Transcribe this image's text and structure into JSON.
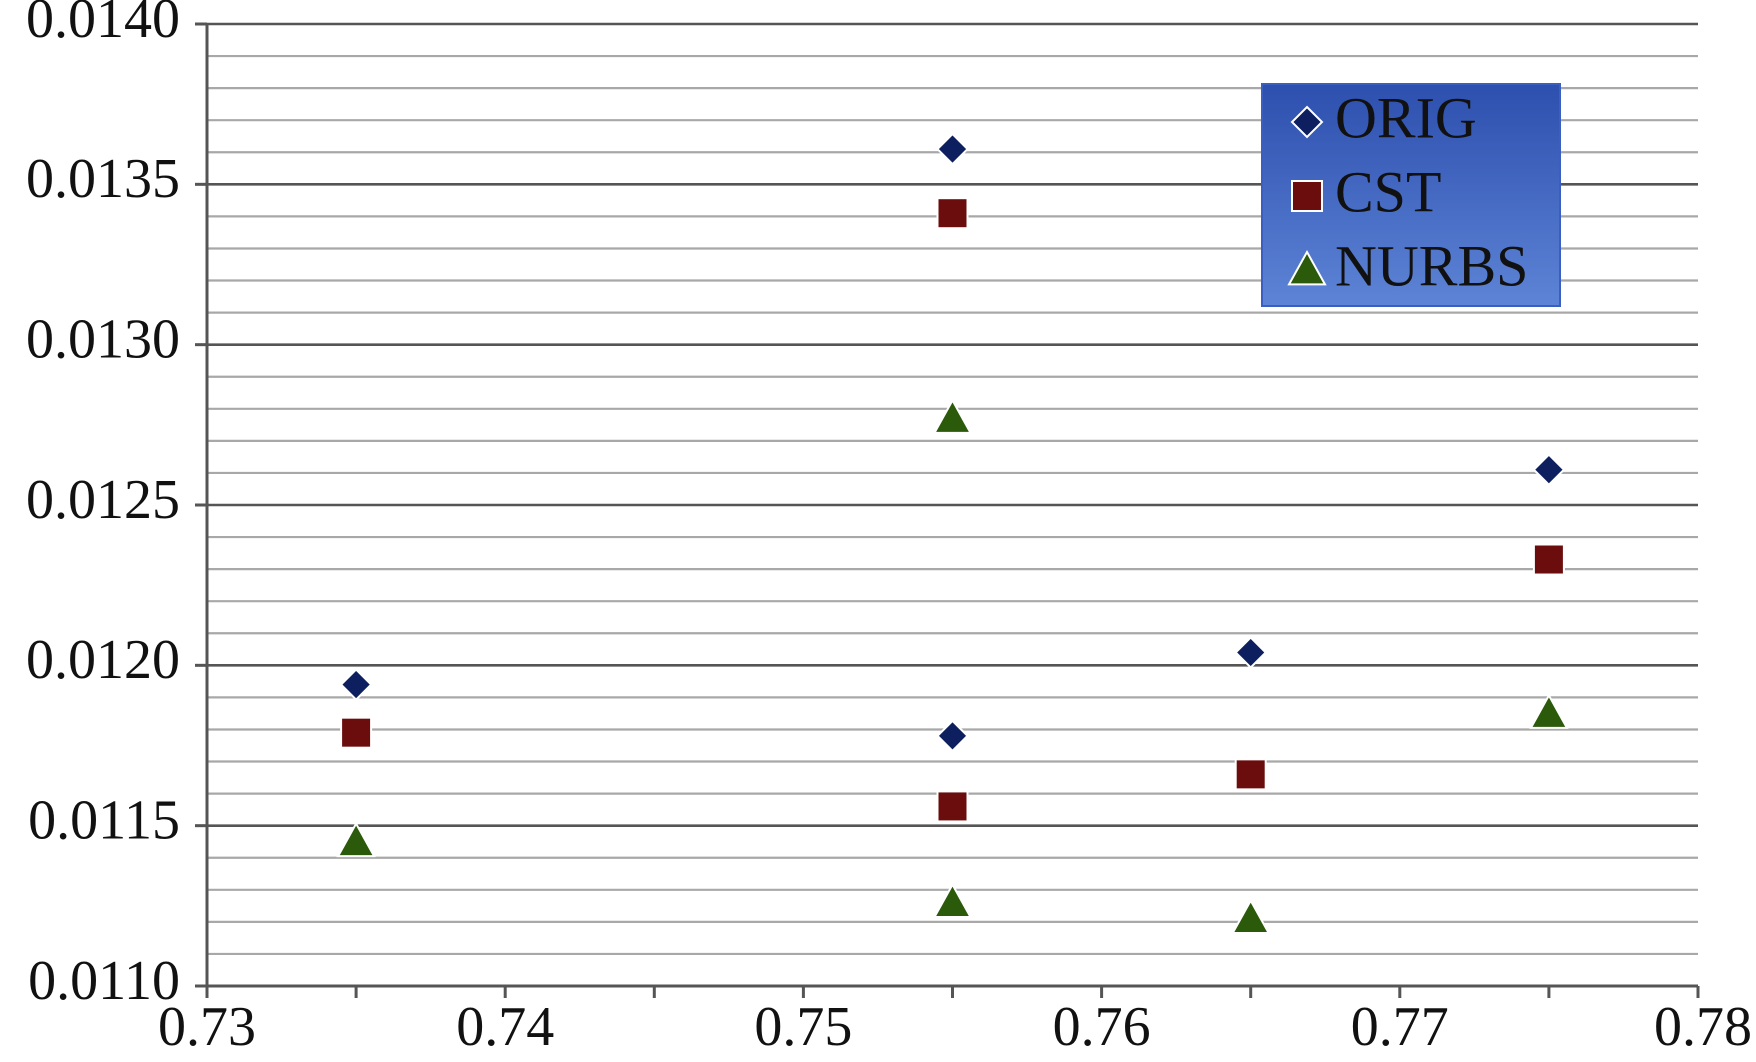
{
  "chart_data": {
    "type": "scatter",
    "title": "",
    "xlabel": "",
    "ylabel": "",
    "xlim": [
      0.73,
      0.78
    ],
    "ylim": [
      0.011,
      0.014
    ],
    "x_ticks": [
      0.73,
      0.74,
      0.75,
      0.76,
      0.77,
      0.78
    ],
    "x_tick_labels": [
      "0.73",
      "0.74",
      "0.75",
      "0.76",
      "0.77",
      "0.78"
    ],
    "y_ticks": [
      0.011,
      0.0115,
      0.012,
      0.0125,
      0.013,
      0.0135,
      0.014
    ],
    "y_tick_labels": [
      "0.0110",
      "0.0115",
      "0.0120",
      "0.0125",
      "0.0130",
      "0.0135",
      "0.0140"
    ],
    "grid": true,
    "legend_position": "top-right",
    "legend_bg": "#3559b8",
    "series": [
      {
        "name": "ORIG",
        "marker": "diamond",
        "color": "#0d1f5e",
        "points": [
          {
            "x": 0.735,
            "y": 0.01194
          },
          {
            "x": 0.755,
            "y": 0.01361
          },
          {
            "x": 0.755,
            "y": 0.01178
          },
          {
            "x": 0.765,
            "y": 0.01204
          },
          {
            "x": 0.775,
            "y": 0.01261
          }
        ]
      },
      {
        "name": "CST",
        "marker": "square",
        "color": "#6b0d0d",
        "points": [
          {
            "x": 0.735,
            "y": 0.01179
          },
          {
            "x": 0.755,
            "y": 0.01341
          },
          {
            "x": 0.755,
            "y": 0.01156
          },
          {
            "x": 0.765,
            "y": 0.01166
          },
          {
            "x": 0.775,
            "y": 0.01233
          }
        ]
      },
      {
        "name": "NURBS",
        "marker": "triangle",
        "color": "#2a5a0a",
        "points": [
          {
            "x": 0.735,
            "y": 0.01145
          },
          {
            "x": 0.755,
            "y": 0.01277
          },
          {
            "x": 0.755,
            "y": 0.01126
          },
          {
            "x": 0.765,
            "y": 0.01121
          },
          {
            "x": 0.775,
            "y": 0.01185
          }
        ]
      }
    ]
  }
}
